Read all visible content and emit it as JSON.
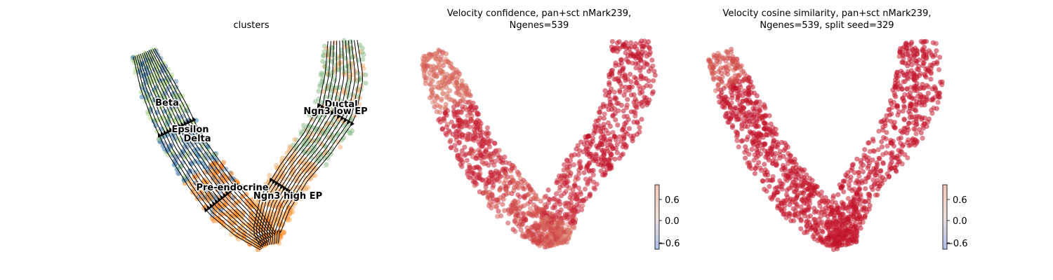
{
  "chart_data": [
    {
      "type": "scatter",
      "title": "clusters",
      "overlay": "velocity streamlines with arrowheads",
      "categories": [
        "Beta",
        "Ductal",
        "Ngn3 low EP",
        "Epsilon",
        "Delta",
        "Pre-endocrine",
        "Ngn3 high EP"
      ],
      "colors": {
        "Beta": "#b5d88e",
        "Ductal": "#8fbf8f",
        "Ngn3 low EP": "#f3b37a",
        "Epsilon": "#3c7fb3",
        "Delta": "#6a8fb8",
        "Pre-endocrine": "#f7841e",
        "Ngn3 high EP": "#fbb46a",
        "streamline": "#000000"
      }
    },
    {
      "type": "scatter",
      "title": "Velocity confidence, pan+sct nMark239,",
      "title_line2": "Ngenes=539",
      "colorbar": {
        "ticks": [
          "0.6",
          "0.0",
          "−0.6"
        ],
        "range": [
          -0.8,
          0.8
        ],
        "colormap": "coolwarm"
      },
      "cmap": {
        "low": "#9bb2e6",
        "mid": "#efd9d0",
        "high": "#c1142c"
      }
    },
    {
      "type": "scatter",
      "title": "Velocity cosine similarity, pan+sct nMark239,",
      "title_line2": "Ngenes=539, split seed=329",
      "colorbar": {
        "ticks": [
          "0.6",
          "0.0",
          "−0.6"
        ],
        "range": [
          -0.8,
          0.8
        ],
        "colormap": "coolwarm"
      },
      "cmap": {
        "low": "#9bb2e6",
        "mid": "#efd9d0",
        "high": "#c1142c"
      }
    }
  ]
}
